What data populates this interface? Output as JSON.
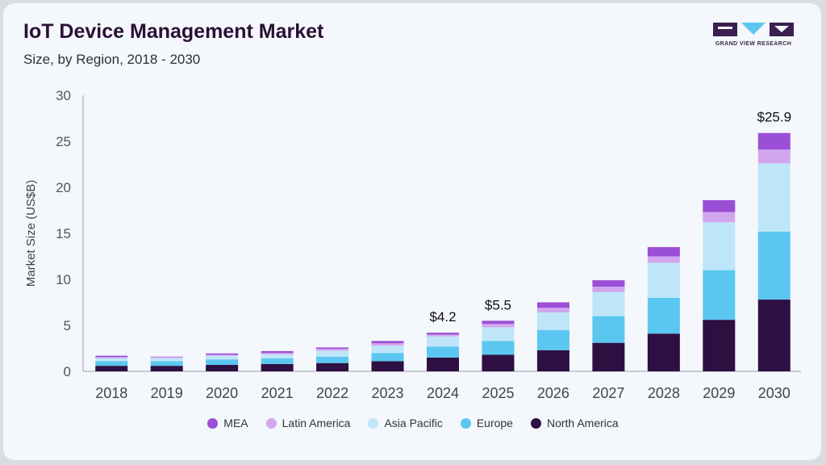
{
  "header": {
    "title": "IoT Device Management Market",
    "subtitle": "Size, by Region, 2018 - 2030",
    "logo_text": "GRAND VIEW RESEARCH"
  },
  "colors": {
    "MEA": "#9b4fd6",
    "Latin America": "#d2a6ef",
    "Asia Pacific": "#bfe6f8",
    "Europe": "#5bc7f0",
    "North America": "#2e0f42"
  },
  "chart_data": {
    "type": "bar",
    "stacked": true,
    "title": "IoT Device Management Market",
    "subtitle": "Size, by Region, 2018 - 2030",
    "xlabel": "",
    "ylabel": "Market Size (US$B)",
    "ylim": [
      0,
      30
    ],
    "yticks": [
      0,
      5,
      10,
      15,
      20,
      25,
      30
    ],
    "categories": [
      "2018",
      "2019",
      "2020",
      "2021",
      "2022",
      "2023",
      "2024",
      "2025",
      "2026",
      "2027",
      "2028",
      "2029",
      "2030"
    ],
    "series": [
      {
        "name": "North America",
        "values": [
          0.6,
          0.6,
          0.7,
          0.8,
          0.9,
          1.1,
          1.5,
          1.8,
          2.3,
          3.1,
          4.1,
          5.6,
          7.8
        ]
      },
      {
        "name": "Europe",
        "values": [
          0.5,
          0.5,
          0.6,
          0.6,
          0.7,
          0.9,
          1.2,
          1.5,
          2.2,
          2.9,
          3.9,
          5.4,
          7.4
        ]
      },
      {
        "name": "Asia Pacific",
        "values": [
          0.35,
          0.35,
          0.4,
          0.45,
          0.65,
          0.8,
          1.1,
          1.5,
          1.9,
          2.6,
          3.8,
          5.2,
          7.4
        ]
      },
      {
        "name": "Latin America",
        "values": [
          0.1,
          0.1,
          0.1,
          0.15,
          0.2,
          0.25,
          0.2,
          0.35,
          0.5,
          0.6,
          0.7,
          1.1,
          1.5
        ]
      },
      {
        "name": "MEA",
        "values": [
          0.15,
          0.05,
          0.15,
          0.2,
          0.15,
          0.25,
          0.2,
          0.35,
          0.6,
          0.7,
          1.0,
          1.3,
          1.8
        ]
      }
    ],
    "data_labels": [
      {
        "category": "2024",
        "text": "$4.2"
      },
      {
        "category": "2025",
        "text": "$5.5"
      },
      {
        "category": "2030",
        "text": "$25.9"
      }
    ],
    "legend": [
      "MEA",
      "Latin America",
      "Asia Pacific",
      "Europe",
      "North America"
    ],
    "legend_position": "bottom",
    "grid": false
  }
}
